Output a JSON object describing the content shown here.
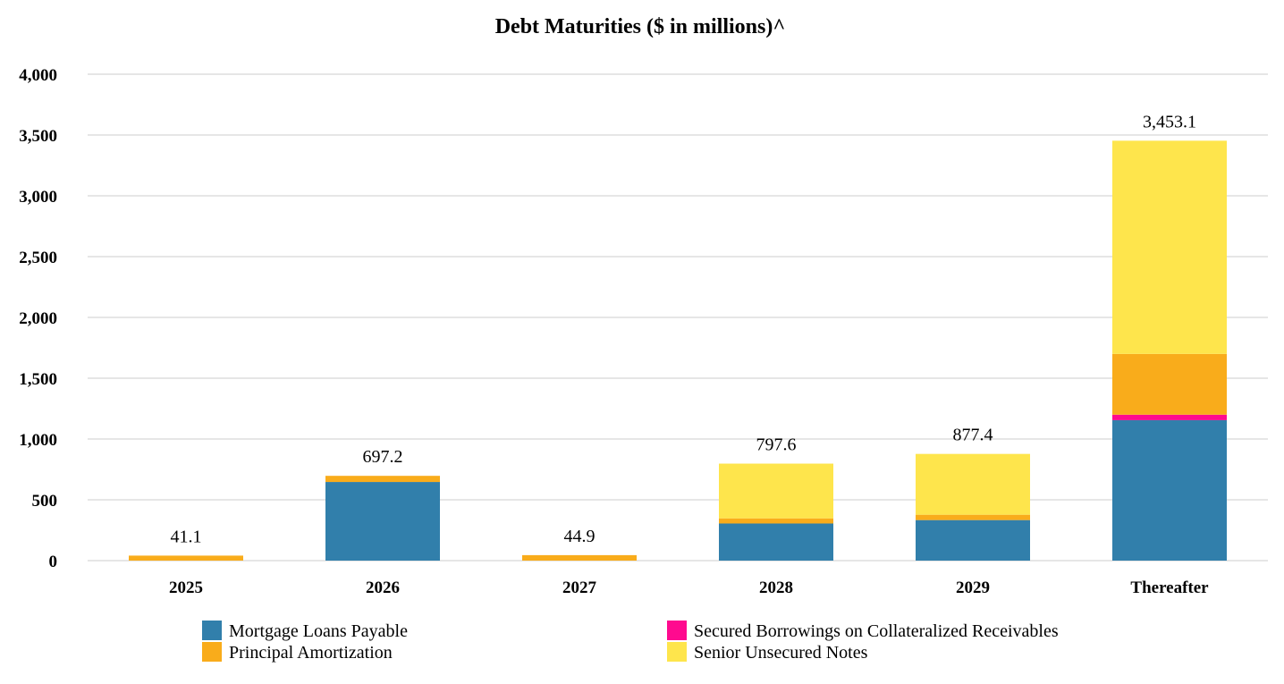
{
  "chart_data": {
    "type": "bar",
    "stacked": true,
    "title": "Debt Maturities ($ in millions)^",
    "xlabel": "",
    "ylabel": "",
    "ylim": [
      0,
      4000
    ],
    "yticks": [
      0,
      500,
      1000,
      1500,
      2000,
      2500,
      3000,
      3500,
      4000
    ],
    "ytick_labels": [
      "0",
      "500",
      "1,000",
      "1,500",
      "2,000",
      "2,500",
      "3,000",
      "3,500",
      "4,000"
    ],
    "grid": true,
    "legend_position": "bottom",
    "categories": [
      "2025",
      "2026",
      "2027",
      "2028",
      "2029",
      "Thereafter"
    ],
    "series": [
      {
        "name": "Mortgage Loans Payable",
        "color": "#317FAB",
        "values": [
          0,
          646.7,
          0,
          305.2,
          333.4,
          1155.0
        ]
      },
      {
        "name": "Secured Borrowings on Collateralized Receivables",
        "color": "#FF0A8F",
        "values": [
          0,
          0,
          0,
          0,
          0,
          45.0
        ]
      },
      {
        "name": "Principal Amortization",
        "color": "#F9AC1B",
        "values": [
          41.1,
          50.5,
          44.9,
          42.4,
          44.0,
          500.0
        ]
      },
      {
        "name": "Senior Unsecured Notes",
        "color": "#FEE54C",
        "values": [
          0,
          0,
          0,
          450.0,
          500.0,
          1753.1
        ]
      }
    ],
    "totals": [
      41.1,
      697.2,
      44.9,
      797.6,
      877.4,
      3453.1
    ],
    "total_labels": [
      "41.1",
      "697.2",
      "44.9",
      "797.6",
      "877.4",
      "3,453.1"
    ],
    "legend": [
      {
        "name": "Mortgage Loans Payable",
        "color": "#317FAB"
      },
      {
        "name": "Secured Borrowings on Collateralized Receivables",
        "color": "#FF0A8F"
      },
      {
        "name": "Principal Amortization",
        "color": "#F9AC1B"
      },
      {
        "name": "Senior Unsecured Notes",
        "color": "#FEE54C"
      }
    ],
    "gridline_color": "#E6E6E6"
  }
}
